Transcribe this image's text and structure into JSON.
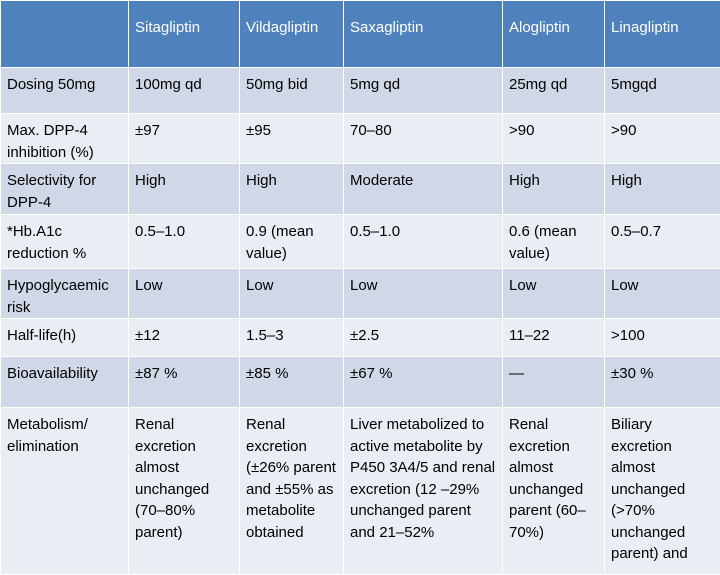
{
  "table": {
    "headers": [
      "",
      "Sitagliptin",
      "Vildagliptin",
      "Saxagliptin",
      "Alogliptin",
      "Linagliptin"
    ],
    "rows": [
      [
        "Dosing 50mg",
        "100mg qd",
        "50mg bid",
        "5mg qd",
        "25mg qd",
        "5mgqd"
      ],
      [
        "Max. DPP-4 inhibition (%)",
        "±97",
        "±95",
        "70–80",
        ">90",
        ">90"
      ],
      [
        "Selectivity for DPP-4",
        "High",
        "High",
        "Moderate",
        "High",
        "High"
      ],
      [
        "*Hb.A1c reduction %",
        "0.5–1.0",
        "0.9 (mean value)",
        "0.5–1.0",
        "0.6 (mean value)",
        "0.5–0.7"
      ],
      [
        "Hypoglycaemic risk",
        "Low",
        "Low",
        "Low",
        "Low",
        "Low"
      ],
      [
        "Half-life(h)",
        "±12",
        "1.5–3",
        "±2.5",
        "11–22",
        ">100"
      ],
      [
        "Bioavailability",
        "±87 %",
        "±85 %",
        "±67 %",
        "—",
        "±30 %"
      ],
      [
        "Metabolism/ elimination",
        "Renal excretion almost unchanged (70–80% parent)",
        "Renal excretion (±26% parent and ±55% as metabolite obtained",
        "Liver metabolized to active metabolite by P450 3A4/5 and renal excretion (12 –29% unchanged parent and 21–52%",
        "Renal excretion almost unchanged parent (60–70%)",
        "Biliary excretion almost unchanged (>70% unchanged parent) and"
      ]
    ]
  },
  "colors": {
    "header_bg": "#4f81bd",
    "header_text": "#ffffff",
    "row_odd_bg": "#d0d8e8",
    "row_even_bg": "#e9edf4",
    "border": "#ffffff"
  }
}
